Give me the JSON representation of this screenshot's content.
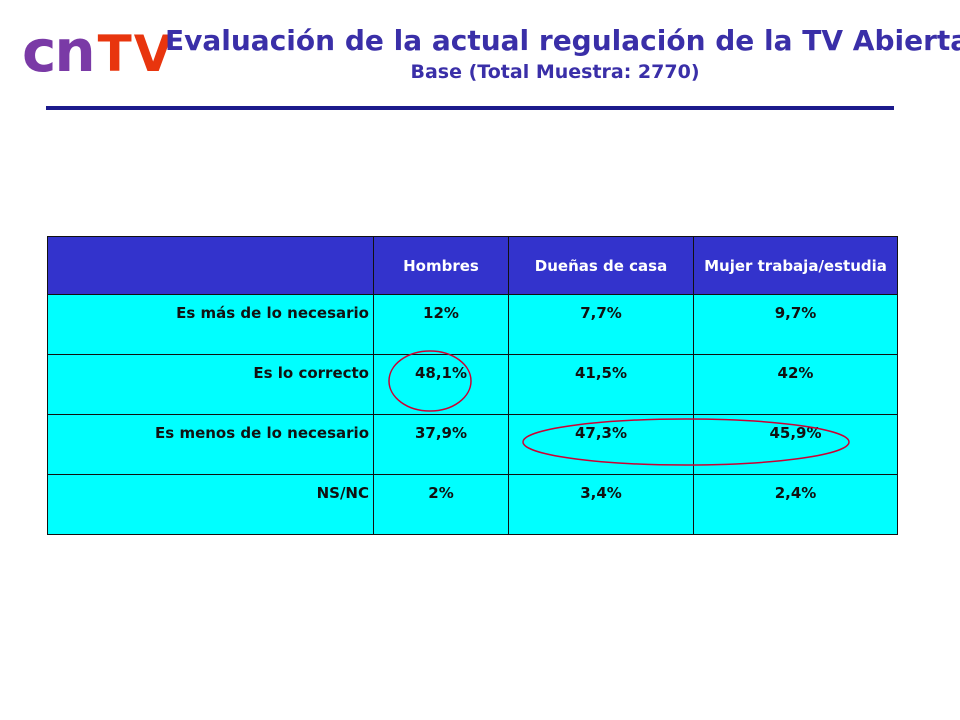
{
  "logo": {
    "part1": "cn",
    "part2": "TV"
  },
  "header": {
    "title": "Evaluación de la actual regulación de la TV Abierta",
    "subtitle": "Base (Total Muestra: 2770)"
  },
  "table": {
    "columns": [
      "",
      "Hombres",
      "Dueñas de casa",
      "Mujer trabaja/estudia"
    ],
    "rows": [
      {
        "label": "Es más de lo necesario",
        "values": [
          "12%",
          "7,7%",
          "9,7%"
        ]
      },
      {
        "label": "Es lo correcto",
        "values": [
          "48,1%",
          "41,5%",
          "42%"
        ]
      },
      {
        "label": "Es menos de lo necesario",
        "values": [
          "37,9%",
          "47,3%",
          "45,9%"
        ]
      },
      {
        "label": "NS/NC",
        "values": [
          "2%",
          "3,4%",
          "2,4%"
        ]
      }
    ]
  },
  "colors": {
    "title": "#3a2fa8",
    "header_fill": "#3333cc",
    "cell_fill": "#00ffff",
    "highlight_ring": "#cc0033",
    "logo_cn": "#7a3aa6",
    "logo_tv": "#e8350e"
  }
}
